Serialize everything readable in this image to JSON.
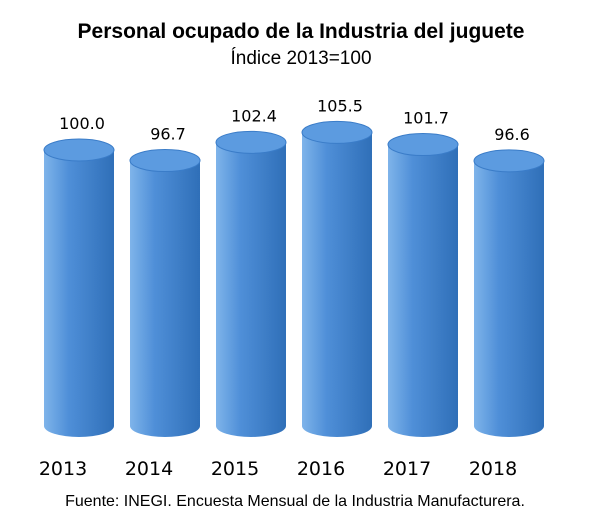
{
  "chart_data": {
    "type": "bar",
    "title": "Personal ocupado de la Industria del juguete",
    "subtitle": "Índice 2013=100",
    "categories": [
      "2013",
      "2014",
      "2015",
      "2016",
      "2017",
      "2018"
    ],
    "values": [
      100.0,
      96.7,
      102.4,
      105.5,
      101.7,
      96.6
    ],
    "value_labels": [
      "100.0",
      "96.7",
      "102.4",
      "105.5",
      "101.7",
      "96.6"
    ],
    "xlabel": "",
    "ylabel": "",
    "grid": false,
    "legend": "none",
    "style": "3d-cylinder",
    "colors": {
      "bar_light": "#7fb4ea",
      "bar_main": "#4f8fd8",
      "bar_dark": "#2f6fb8",
      "bar_top": "#5c9be0",
      "bar_top_edge": "#3a7cc8"
    }
  },
  "source": "Fuente: INEGI. Encuesta Mensual de la Industria Manufacturera."
}
